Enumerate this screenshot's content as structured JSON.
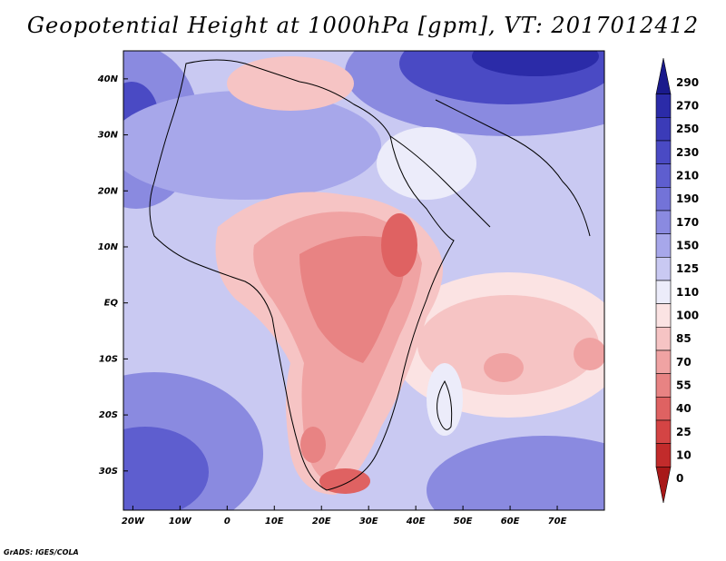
{
  "title": "Geopotential Height at 1000hPa [gpm], VT: 2017012412",
  "credit": "GrADS: IGES/COLA",
  "map": {
    "lat_labels": [
      "40N",
      "30N",
      "20N",
      "10N",
      "EQ",
      "10S",
      "20S",
      "30S"
    ],
    "lon_labels": [
      "20W",
      "10W",
      "0",
      "10E",
      "20E",
      "30E",
      "40E",
      "50E",
      "60E",
      "70E"
    ],
    "lat_values": [
      40,
      30,
      20,
      10,
      0,
      -10,
      -20,
      -30
    ],
    "lon_values": [
      -20,
      -10,
      0,
      10,
      20,
      30,
      40,
      50,
      60,
      70
    ],
    "extent": {
      "lon_min": -22,
      "lon_max": 80,
      "lat_min": -37,
      "lat_max": 45
    }
  },
  "colorbar": {
    "levels": [
      "290",
      "270",
      "250",
      "230",
      "210",
      "190",
      "170",
      "150",
      "125",
      "110",
      "100",
      "85",
      "70",
      "55",
      "40",
      "25",
      "10",
      "0"
    ],
    "colors": [
      "#1a1a8c",
      "#2b2ba8",
      "#3b3bb8",
      "#4a4ac4",
      "#5e5ecf",
      "#7373d8",
      "#8a8ae0",
      "#a7a7ea",
      "#c9c9f2",
      "#ececfa",
      "#fbe3e3",
      "#f6c4c4",
      "#f0a3a3",
      "#e88383",
      "#df6262",
      "#d44444",
      "#c22b2b",
      "#a81818"
    ]
  }
}
